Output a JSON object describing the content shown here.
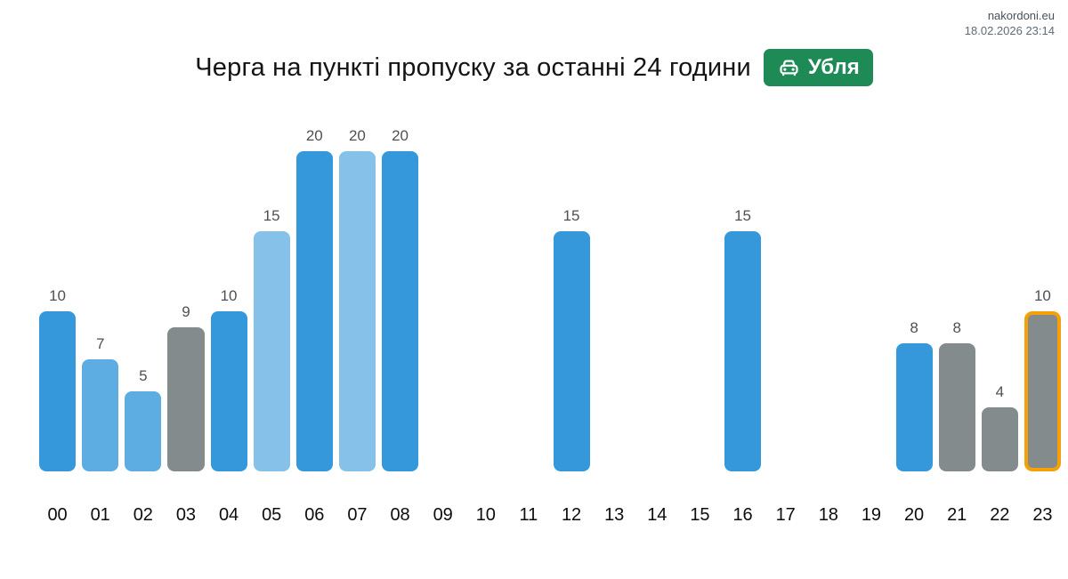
{
  "header": {
    "site_link": "nakordoni.eu",
    "timestamp": "18.02.2026 23:14"
  },
  "title": {
    "text": "Черга на пункті пропуску за останні 24 години"
  },
  "badge": {
    "label": "Убля",
    "background": "#1e8a56",
    "icon": "car-icon"
  },
  "chart_data": {
    "type": "bar",
    "title": "Черга на пункті пропуску за останні 24 години",
    "categories": [
      "00",
      "01",
      "02",
      "03",
      "04",
      "05",
      "06",
      "07",
      "08",
      "09",
      "10",
      "11",
      "12",
      "13",
      "14",
      "15",
      "16",
      "17",
      "18",
      "19",
      "20",
      "21",
      "22",
      "23"
    ],
    "values": [
      10,
      7,
      5,
      9,
      10,
      15,
      20,
      20,
      20,
      null,
      null,
      null,
      15,
      null,
      null,
      null,
      15,
      null,
      null,
      null,
      8,
      8,
      4,
      10
    ],
    "bar_colors": [
      "#3498db",
      "#5dade2",
      "#5dade2",
      "#848b8d",
      "#3498db",
      "#85c1e9",
      "#3498db",
      "#85c1e9",
      "#3498db",
      null,
      null,
      null,
      "#3498db",
      null,
      null,
      null,
      "#3498db",
      null,
      null,
      null,
      "#3498db",
      "#848b8d",
      "#848b8d",
      "#848b8d"
    ],
    "value_labels_shown": true,
    "highlighted_category": "23",
    "highlight_border_color": "#f5a009",
    "ylim": [
      0,
      20
    ],
    "grid": false,
    "legend": false,
    "xlabel": "",
    "ylabel": "",
    "palette": {
      "dark_blue": "#3498db",
      "medium_blue": "#5dade2",
      "light_blue": "#85c1e9",
      "gray": "#848b8d",
      "highlight_orange": "#f5a009"
    }
  }
}
